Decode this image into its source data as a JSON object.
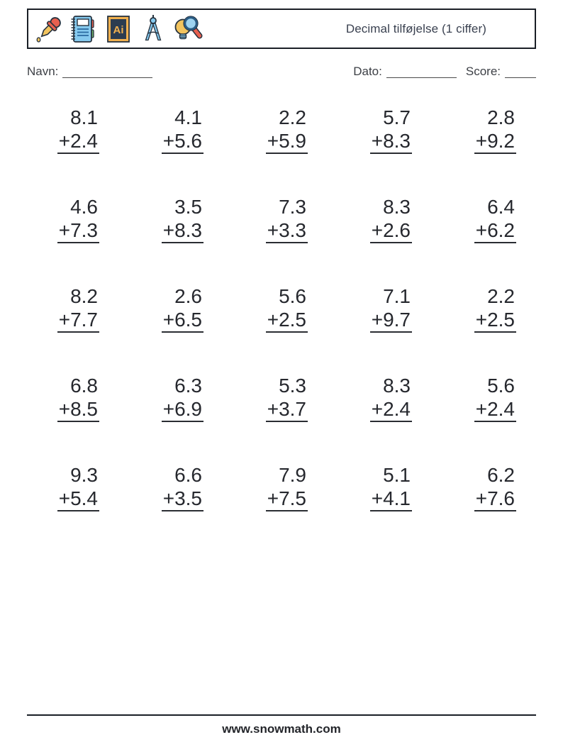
{
  "header": {
    "title": "Decimal tilføjelse (1 ciffer)",
    "icons": [
      "eyedropper-icon",
      "notebook-icon",
      "ai-logo-icon",
      "drafting-compass-icon",
      "lightbulb-magnifier-icon"
    ]
  },
  "fields": {
    "name_label": "Navn:",
    "date_label": "Dato:",
    "score_label": "Score:"
  },
  "worksheet": {
    "operator": "+",
    "columns": 5,
    "rows": 5,
    "problems": [
      {
        "a": "8.1",
        "b": "2.4"
      },
      {
        "a": "4.1",
        "b": "5.6"
      },
      {
        "a": "2.2",
        "b": "5.9"
      },
      {
        "a": "5.7",
        "b": "8.3"
      },
      {
        "a": "2.8",
        "b": "9.2"
      },
      {
        "a": "4.6",
        "b": "7.3"
      },
      {
        "a": "3.5",
        "b": "8.3"
      },
      {
        "a": "7.3",
        "b": "3.3"
      },
      {
        "a": "8.3",
        "b": "2.6"
      },
      {
        "a": "6.4",
        "b": "6.2"
      },
      {
        "a": "8.2",
        "b": "7.7"
      },
      {
        "a": "2.6",
        "b": "6.5"
      },
      {
        "a": "5.6",
        "b": "2.5"
      },
      {
        "a": "7.1",
        "b": "9.7"
      },
      {
        "a": "2.2",
        "b": "2.5"
      },
      {
        "a": "6.8",
        "b": "8.5"
      },
      {
        "a": "6.3",
        "b": "6.9"
      },
      {
        "a": "5.3",
        "b": "3.7"
      },
      {
        "a": "8.3",
        "b": "2.4"
      },
      {
        "a": "5.6",
        "b": "2.4"
      },
      {
        "a": "9.3",
        "b": "5.4"
      },
      {
        "a": "6.6",
        "b": "3.5"
      },
      {
        "a": "7.9",
        "b": "7.5"
      },
      {
        "a": "5.1",
        "b": "4.1"
      },
      {
        "a": "6.2",
        "b": "7.6"
      }
    ]
  },
  "footer": {
    "site": "www.snowmath.com"
  },
  "colors": {
    "text": "#26282e",
    "title": "#3a4150",
    "rule_line": "#2a2d33",
    "icon_red": "#e8604f",
    "icon_yellow": "#f2c45f",
    "icon_blue": "#85c9ee",
    "icon_navy": "#2b3c50",
    "icon_gold": "#f0b04f",
    "icon_green": "#72b46a"
  }
}
